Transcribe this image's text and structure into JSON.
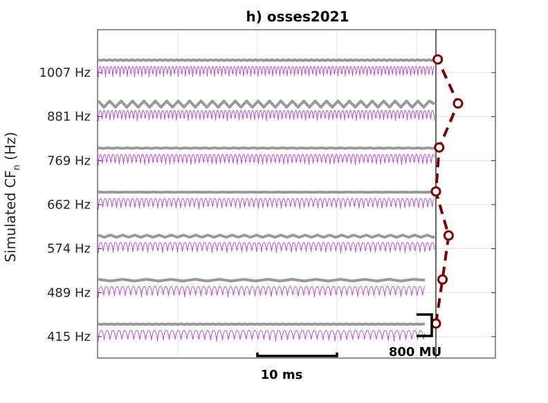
{
  "chart_data": {
    "type": "line",
    "title": "h) osses2021",
    "ylabel": "Simulated CF",
    "ylabel_sub": "n",
    "ylabel_unit": " (Hz)",
    "categories": [
      "415 Hz",
      "489 Hz",
      "574 Hz",
      "662 Hz",
      "769 Hz",
      "881 Hz",
      "1007 Hz"
    ],
    "cf_hz": [
      415,
      489,
      574,
      662,
      769,
      881,
      1007
    ],
    "grid": true,
    "time_scale_bar": {
      "label": "10 ms",
      "duration_ms": 10
    },
    "amplitude_scale_bar": {
      "label": "800 MU",
      "amplitude_mu": 800
    },
    "series": [
      {
        "marker": "circle",
        "line_style": "dashed",
        "color": "#800000",
        "relative_amplitude": [
          0.0,
          0.14,
          0.27,
          0.0,
          0.07,
          0.47,
          0.04
        ]
      }
    ],
    "colors": {
      "fine_structure": "#b84fd6",
      "envelope": "#999999",
      "marker_series": "#800000"
    }
  }
}
